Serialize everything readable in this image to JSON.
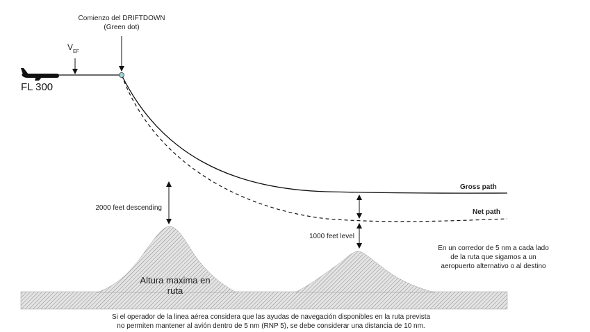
{
  "start": {
    "line1": "Comienzo del  DRIFTDOWN",
    "line2": "(Green dot)"
  },
  "vef": {
    "main": "V",
    "sub": "EF"
  },
  "level": "FL 300",
  "paths": {
    "gross": "Gross path",
    "net": "Net path"
  },
  "margins": {
    "descending": "2000 feet descending",
    "level": "1000 feet level"
  },
  "terrain": {
    "line1": "Altura maxima en",
    "line2": "ruta"
  },
  "corridor": {
    "lines": [
      "En un corredor de 5 nm a cada lado",
      "de la ruta que sigamos a un",
      "aeropuerto alternativo o al destino"
    ]
  },
  "caption": {
    "lines": [
      "Si el operador de la linea aérea considera que las ayudas de navegación disponibles en la ruta prevista",
      "no permiten mantener al avión dentro de 5 nm (RNP 5), se debe considerar una distancia de 10 nm."
    ]
  }
}
